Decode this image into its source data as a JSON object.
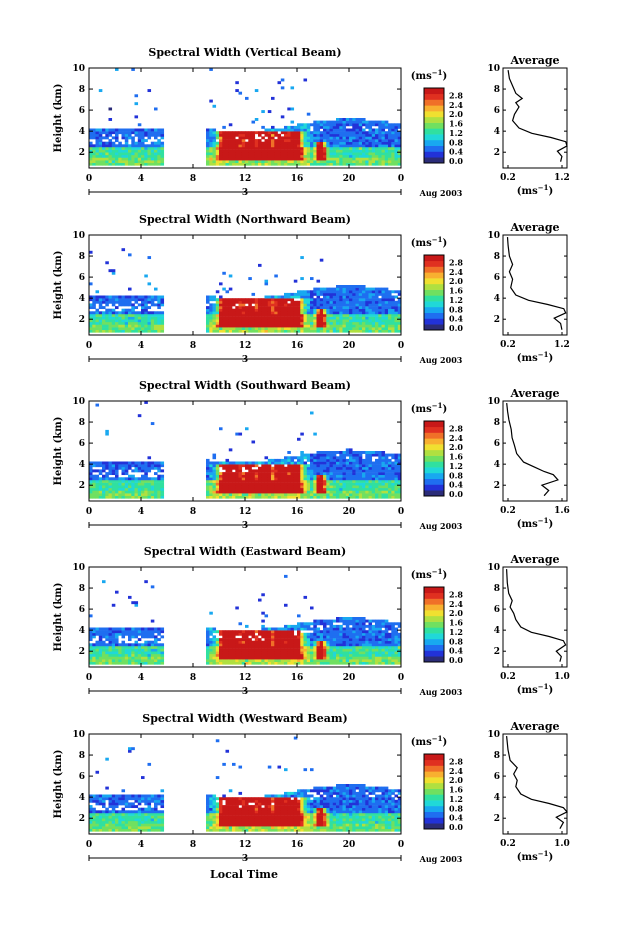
{
  "colors": {
    "colormap": [
      "#2b2c78",
      "#2232d8",
      "#1f6ef0",
      "#18a8f0",
      "#20d8d8",
      "#30e0a0",
      "#70e060",
      "#b0e040",
      "#f0e030",
      "#f8b030",
      "#f07028",
      "#e03020",
      "#c81818"
    ]
  },
  "x_label": "Local Time",
  "date_label": "Aug 2003",
  "day_label": "3",
  "avg_title": "Average",
  "avg_unit": "(ms",
  "unit_exp": "−1",
  "unit_close": ")",
  "cb_unit": "(ms",
  "chart_data": [
    {
      "type": "heatmap",
      "title": "Spectral Width (Vertical Beam)",
      "ylabel": "Height (km)",
      "xlim": [
        0,
        24
      ],
      "ylim": [
        0.5,
        10
      ],
      "x_ticks": [
        "0",
        "4",
        "8",
        "12",
        "16",
        "20",
        "0"
      ],
      "y_ticks": [
        "2",
        "4",
        "6",
        "8",
        "10"
      ],
      "colorbar_ticks": [
        "0.0",
        "0.4",
        "0.8",
        "1.2",
        "1.6",
        "2.0",
        "2.4",
        "2.8"
      ],
      "colorbar_range": [
        0,
        2.8
      ],
      "avg_profile": {
        "xlim": [
          0.2,
          1.2
        ],
        "x_ticks": [
          "0.2",
          "1.2"
        ],
        "y_ticks": [
          "2",
          "4",
          "6",
          "8",
          "10"
        ],
        "points": [
          [
            1.1,
            1.1
          ],
          [
            1.12,
            1.6
          ],
          [
            1.05,
            2.1
          ],
          [
            1.2,
            2.6
          ],
          [
            1.18,
            3.0
          ],
          [
            0.95,
            3.4
          ],
          [
            0.65,
            3.8
          ],
          [
            0.45,
            4.3
          ],
          [
            0.35,
            5.0
          ],
          [
            0.38,
            5.6
          ],
          [
            0.45,
            6.3
          ],
          [
            0.4,
            6.7
          ],
          [
            0.5,
            7.1
          ],
          [
            0.4,
            7.6
          ],
          [
            0.35,
            8.3
          ],
          [
            0.3,
            9.0
          ],
          [
            0.28,
            9.8
          ]
        ]
      }
    },
    {
      "type": "heatmap",
      "title": "Spectral Width (Northward Beam)",
      "ylabel": "Height (km)",
      "xlim": [
        0,
        24
      ],
      "ylim": [
        0.5,
        10
      ],
      "x_ticks": [
        "0",
        "4",
        "8",
        "12",
        "16",
        "20",
        "0"
      ],
      "y_ticks": [
        "2",
        "4",
        "6",
        "8",
        "10"
      ],
      "colorbar_ticks": [
        "0.0",
        "0.4",
        "0.8",
        "1.2",
        "1.6",
        "2.0",
        "2.4",
        "2.8"
      ],
      "colorbar_range": [
        0,
        2.8
      ],
      "avg_profile": {
        "xlim": [
          0.2,
          1.2
        ],
        "x_ticks": [
          "0.2",
          "1.2"
        ],
        "y_ticks": [
          "2",
          "4",
          "6",
          "8",
          "10"
        ],
        "points": [
          [
            1.12,
            1.0
          ],
          [
            1.1,
            1.6
          ],
          [
            1.0,
            2.1
          ],
          [
            1.18,
            2.6
          ],
          [
            1.15,
            3.0
          ],
          [
            0.9,
            3.4
          ],
          [
            0.6,
            3.8
          ],
          [
            0.4,
            4.3
          ],
          [
            0.32,
            5.0
          ],
          [
            0.35,
            5.8
          ],
          [
            0.3,
            6.5
          ],
          [
            0.35,
            7.2
          ],
          [
            0.3,
            8.0
          ],
          [
            0.28,
            9.0
          ],
          [
            0.27,
            9.8
          ]
        ]
      }
    },
    {
      "type": "heatmap",
      "title": "Spectral Width (Southward Beam)",
      "ylabel": "Height (km)",
      "xlim": [
        0,
        24
      ],
      "ylim": [
        0.5,
        10
      ],
      "x_ticks": [
        "0",
        "4",
        "8",
        "12",
        "16",
        "20",
        "0"
      ],
      "y_ticks": [
        "2",
        "4",
        "6",
        "8",
        "10"
      ],
      "colorbar_ticks": [
        "0.0",
        "0.4",
        "0.8",
        "1.2",
        "1.6",
        "2.0",
        "2.4",
        "2.8"
      ],
      "colorbar_range": [
        0,
        2.8
      ],
      "avg_profile": {
        "xlim": [
          0.2,
          1.6
        ],
        "x_ticks": [
          "0.2",
          "1.6"
        ],
        "y_ticks": [
          "2",
          "4",
          "6",
          "8",
          "10"
        ],
        "points": [
          [
            1.1,
            1.0
          ],
          [
            1.2,
            1.5
          ],
          [
            1.05,
            2.0
          ],
          [
            1.4,
            2.5
          ],
          [
            1.3,
            3.0
          ],
          [
            1.1,
            3.3
          ],
          [
            0.9,
            3.7
          ],
          [
            0.65,
            4.2
          ],
          [
            0.5,
            5.0
          ],
          [
            0.45,
            5.8
          ],
          [
            0.4,
            6.5
          ],
          [
            0.38,
            7.3
          ],
          [
            0.33,
            8.2
          ],
          [
            0.3,
            9.0
          ],
          [
            0.28,
            9.8
          ]
        ]
      }
    },
    {
      "type": "heatmap",
      "title": "Spectral Width (Eastward Beam)",
      "ylabel": "Height (km)",
      "xlim": [
        0,
        24
      ],
      "ylim": [
        0.5,
        10
      ],
      "x_ticks": [
        "0",
        "4",
        "8",
        "12",
        "16",
        "20",
        "0"
      ],
      "y_ticks": [
        "2",
        "4",
        "6",
        "8",
        "10"
      ],
      "colorbar_ticks": [
        "0.0",
        "0.4",
        "0.8",
        "1.2",
        "1.6",
        "2.0",
        "2.4",
        "2.8"
      ],
      "colorbar_range": [
        0,
        2.8
      ],
      "avg_profile": {
        "xlim": [
          0.2,
          1.1
        ],
        "x_ticks": [
          "0.2",
          "1.0"
        ],
        "y_ticks": [
          "2",
          "4",
          "6",
          "8",
          "10"
        ],
        "points": [
          [
            1.0,
            1.0
          ],
          [
            1.02,
            1.5
          ],
          [
            0.95,
            2.0
          ],
          [
            1.08,
            2.6
          ],
          [
            1.05,
            3.0
          ],
          [
            0.85,
            3.4
          ],
          [
            0.6,
            3.8
          ],
          [
            0.45,
            4.3
          ],
          [
            0.38,
            5.0
          ],
          [
            0.35,
            5.6
          ],
          [
            0.3,
            6.2
          ],
          [
            0.33,
            6.8
          ],
          [
            0.28,
            7.5
          ],
          [
            0.26,
            8.5
          ],
          [
            0.25,
            9.8
          ]
        ]
      }
    },
    {
      "type": "heatmap",
      "title": "Spectral Width (Westward Beam)",
      "ylabel": "Height (km)",
      "xlim": [
        0,
        24
      ],
      "ylim": [
        0.5,
        10
      ],
      "x_ticks": [
        "0",
        "4",
        "8",
        "12",
        "16",
        "20",
        "0"
      ],
      "y_ticks": [
        "2",
        "4",
        "6",
        "8",
        "10"
      ],
      "colorbar_ticks": [
        "0.0",
        "0.4",
        "0.8",
        "1.2",
        "1.6",
        "2.0",
        "2.4",
        "2.8"
      ],
      "colorbar_range": [
        0,
        2.8
      ],
      "avg_profile": {
        "xlim": [
          0.2,
          1.1
        ],
        "x_ticks": [
          "0.2",
          "1.0"
        ],
        "y_ticks": [
          "2",
          "4",
          "6",
          "8",
          "10"
        ],
        "points": [
          [
            1.0,
            1.0
          ],
          [
            1.05,
            1.6
          ],
          [
            0.95,
            2.1
          ],
          [
            1.1,
            2.6
          ],
          [
            1.05,
            3.0
          ],
          [
            0.85,
            3.4
          ],
          [
            0.6,
            3.8
          ],
          [
            0.45,
            4.3
          ],
          [
            0.38,
            5.0
          ],
          [
            0.4,
            5.6
          ],
          [
            0.35,
            6.2
          ],
          [
            0.4,
            6.8
          ],
          [
            0.3,
            7.5
          ],
          [
            0.27,
            8.5
          ],
          [
            0.25,
            9.8
          ]
        ]
      }
    }
  ]
}
